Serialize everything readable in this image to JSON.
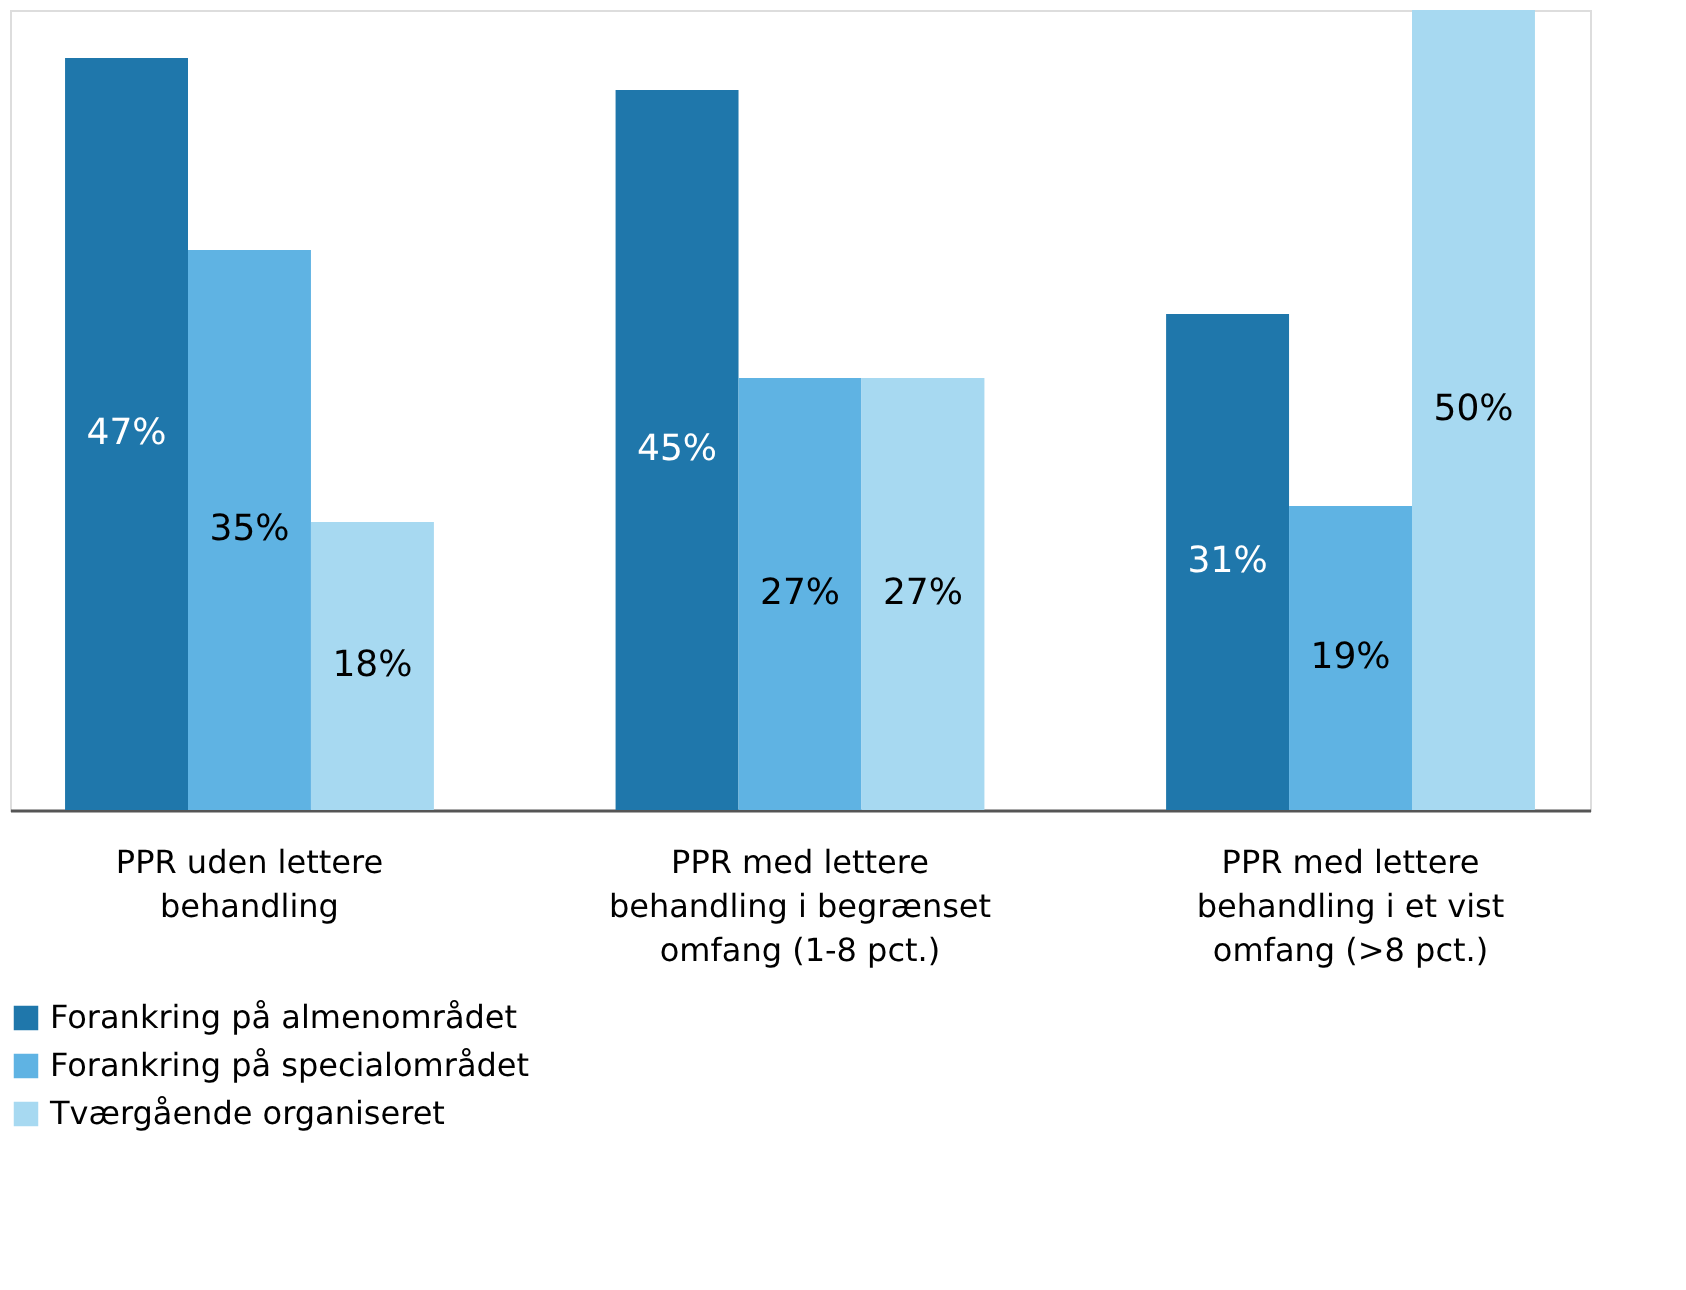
{
  "chart_data": {
    "type": "bar",
    "categories": [
      "PPR uden lettere behandling",
      "PPR med lettere behandling i begrænset omfang (1-8 pct.)",
      "PPR med lettere behandling i et vist omfang (>8 pct.)"
    ],
    "series": [
      {
        "name": "Forankring på almenområdet",
        "color": "#1f77ab",
        "values": [
          47,
          45,
          31
        ],
        "value_labels": [
          "47%",
          "45%",
          "31%"
        ]
      },
      {
        "name": "Forankring på specialområdet",
        "color": "#5fb3e3",
        "values": [
          35,
          27,
          19
        ],
        "value_labels": [
          "35%",
          "27%",
          "19%"
        ]
      },
      {
        "name": "Tværgående organiseret",
        "color": "#a7d9f1",
        "values": [
          18,
          27,
          50
        ],
        "value_labels": [
          "18%",
          "27%",
          "50%"
        ]
      }
    ],
    "legend": "bottom",
    "grid": false,
    "tick_labels": "x"
  }
}
